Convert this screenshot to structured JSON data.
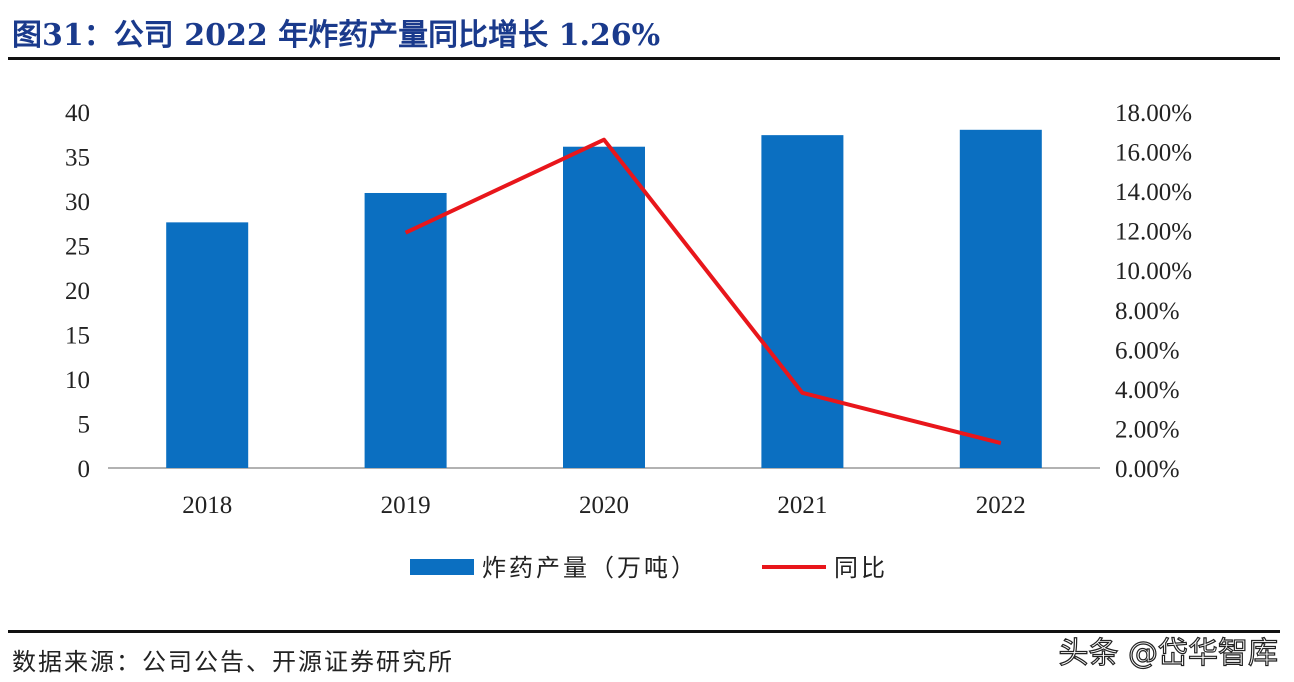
{
  "title": "图31：公司 2022 年炸药产量同比增长 1.26%",
  "source": "数据来源：公司公告、开源证券研究所",
  "watermark": "头条 @岱华智库",
  "colors": {
    "bar": "#0b6fc1",
    "line": "#e8161b",
    "title": "#1a3a8c"
  },
  "chart_data": {
    "type": "bar+line",
    "categories": [
      "2018",
      "2019",
      "2020",
      "2021",
      "2022"
    ],
    "series": [
      {
        "name": "炸药产量（万吨）",
        "type": "bar",
        "axis": "left",
        "values": [
          27.6,
          30.9,
          36.1,
          37.4,
          38.0
        ]
      },
      {
        "name": "同比",
        "type": "line",
        "axis": "right",
        "values": [
          null,
          11.9,
          16.6,
          3.8,
          1.26
        ]
      }
    ],
    "left_axis": {
      "ylim": [
        0,
        40
      ],
      "ticks": [
        "0",
        "5",
        "10",
        "15",
        "20",
        "25",
        "30",
        "35",
        "40"
      ]
    },
    "right_axis": {
      "ylim": [
        0,
        18
      ],
      "ticks": [
        "0.00%",
        "2.00%",
        "4.00%",
        "6.00%",
        "8.00%",
        "10.00%",
        "12.00%",
        "14.00%",
        "16.00%",
        "18.00%"
      ]
    },
    "grid": false,
    "legend": "bottom"
  }
}
